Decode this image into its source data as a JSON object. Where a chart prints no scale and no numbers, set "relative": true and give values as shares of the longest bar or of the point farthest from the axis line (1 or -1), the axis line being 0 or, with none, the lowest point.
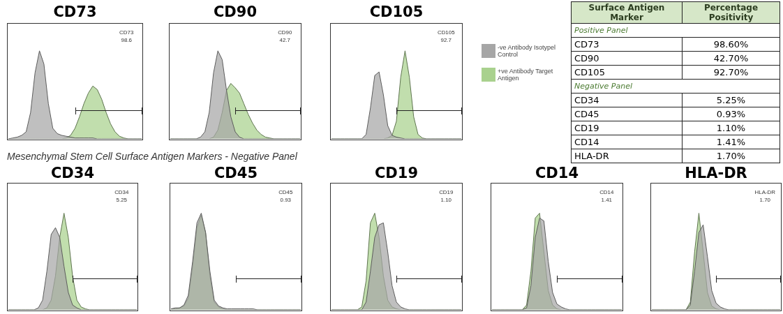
{
  "chart_data": [
    {
      "type": "area",
      "title": "CD73",
      "relative": true,
      "categories": [
        null,
        null,
        null,
        null,
        null,
        null,
        null,
        null,
        null,
        null,
        null,
        null,
        null,
        null,
        null,
        null,
        null,
        null,
        null,
        null,
        null,
        null,
        null,
        null,
        null,
        null,
        null,
        null,
        null,
        null,
        null
      ],
      "marker": "none",
      "annotations": [
        "CD73",
        "98.6"
      ],
      "series": [
        {
          "color": "#a6a6a6",
          "values": [
            0,
            0.01,
            0.02,
            0.04,
            0.08,
            0.3,
            0.75,
            1,
            0.85,
            0.4,
            0.12,
            0.06,
            0.04,
            0.03,
            0.02,
            0.01,
            0.01,
            0.01,
            0.01,
            0.01,
            0,
            0,
            0,
            0,
            0,
            0,
            0,
            0,
            0,
            0,
            0
          ]
        },
        {
          "color": "#a9d18e",
          "values": [
            0,
            0,
            0,
            0,
            0,
            0,
            0,
            0,
            0,
            0,
            0,
            0,
            0,
            0.01,
            0.04,
            0.12,
            0.25,
            0.4,
            0.52,
            0.6,
            0.56,
            0.45,
            0.3,
            0.17,
            0.08,
            0.03,
            0.01,
            0,
            0,
            0,
            0
          ]
        }
      ]
    },
    {
      "type": "area",
      "title": "CD90",
      "relative": true,
      "categories": [
        null,
        null,
        null,
        null,
        null,
        null,
        null,
        null,
        null,
        null,
        null,
        null,
        null,
        null,
        null,
        null,
        null,
        null,
        null,
        null,
        null,
        null,
        null,
        null,
        null,
        null,
        null,
        null,
        null,
        null,
        null
      ],
      "marker": "none",
      "annotations": [
        "CD90",
        "42.7"
      ],
      "series": [
        {
          "color": "#a6a6a6",
          "values": [
            0,
            0,
            0,
            0,
            0,
            0,
            0,
            0.02,
            0.08,
            0.3,
            0.75,
            1,
            0.9,
            0.55,
            0.25,
            0.08,
            0.02,
            0,
            0,
            0,
            0,
            0,
            0,
            0,
            0,
            0,
            0,
            0,
            0,
            0,
            0
          ]
        },
        {
          "color": "#a9d18e",
          "values": [
            0,
            0,
            0,
            0,
            0,
            0,
            0,
            0,
            0,
            0,
            0.02,
            0.1,
            0.3,
            0.55,
            0.63,
            0.58,
            0.52,
            0.4,
            0.28,
            0.18,
            0.1,
            0.05,
            0.02,
            0.01,
            0,
            0,
            0,
            0,
            0,
            0,
            0
          ]
        }
      ]
    },
    {
      "type": "area",
      "title": "CD105",
      "relative": true,
      "categories": [
        null,
        null,
        null,
        null,
        null,
        null,
        null,
        null,
        null,
        null,
        null,
        null,
        null,
        null,
        null,
        null,
        null,
        null,
        null,
        null,
        null,
        null,
        null,
        null,
        null,
        null,
        null,
        null,
        null,
        null,
        null
      ],
      "marker": "none",
      "legend": "right",
      "annotations": [
        "CD105",
        "92.7"
      ],
      "series": [
        {
          "name": "-ve Antibody Isotypel Control",
          "color": "#a6a6a6",
          "values": [
            0,
            0,
            0,
            0,
            0,
            0,
            0,
            0,
            0.05,
            0.35,
            0.72,
            0.76,
            0.5,
            0.15,
            0.04,
            0.02,
            0.01,
            0,
            0,
            0,
            0,
            0,
            0,
            0,
            0,
            0,
            0,
            0,
            0,
            0,
            0
          ]
        },
        {
          "name": "+ve Antibody Target Antigen",
          "color": "#a9d18e",
          "values": [
            0,
            0,
            0,
            0,
            0,
            0,
            0,
            0,
            0,
            0,
            0,
            0,
            0,
            0.01,
            0.04,
            0.2,
            0.7,
            1,
            0.7,
            0.25,
            0.05,
            0.01,
            0,
            0,
            0,
            0,
            0,
            0,
            0,
            0,
            0
          ]
        }
      ]
    },
    {
      "type": "area",
      "title": "CD34",
      "subtitle": "Mesenchymal Stem Cell Surface Antigen Markers - Negative Panel",
      "relative": true,
      "categories": [
        null,
        null,
        null,
        null,
        null,
        null,
        null,
        null,
        null,
        null,
        null,
        null,
        null,
        null,
        null,
        null,
        null,
        null,
        null,
        null,
        null,
        null,
        null,
        null,
        null,
        null,
        null,
        null,
        null,
        null,
        null
      ],
      "marker": "none",
      "annotations": [
        "CD34",
        "5.25"
      ],
      "series": [
        {
          "color": "#a6a6a6",
          "values": [
            0,
            0,
            0,
            0,
            0,
            0,
            0,
            0.02,
            0.1,
            0.4,
            0.78,
            0.85,
            0.75,
            0.45,
            0.18,
            0.05,
            0.02,
            0,
            0,
            0,
            0,
            0,
            0,
            0,
            0,
            0,
            0,
            0,
            0,
            0,
            0
          ]
        },
        {
          "color": "#a9d18e",
          "values": [
            0,
            0,
            0,
            0,
            0,
            0,
            0,
            0,
            0,
            0.02,
            0.1,
            0.35,
            0.75,
            1,
            0.75,
            0.35,
            0.1,
            0.03,
            0.01,
            0,
            0,
            0,
            0,
            0,
            0,
            0,
            0,
            0,
            0,
            0,
            0
          ]
        }
      ]
    },
    {
      "type": "area",
      "title": "CD45",
      "relative": true,
      "categories": [
        null,
        null,
        null,
        null,
        null,
        null,
        null,
        null,
        null,
        null,
        null,
        null,
        null,
        null,
        null,
        null,
        null,
        null,
        null,
        null,
        null,
        null,
        null,
        null,
        null,
        null,
        null,
        null,
        null,
        null,
        null
      ],
      "marker": "none",
      "annotations": [
        "CD45",
        "0.93"
      ],
      "series": [
        {
          "color": "#a6a6a6",
          "values": [
            0.01,
            0.02,
            0.02,
            0.05,
            0.15,
            0.5,
            0.9,
            1,
            0.8,
            0.4,
            0.1,
            0.04,
            0.02,
            0.01,
            0.01,
            0.01,
            0.01,
            0.01,
            0.01,
            0.01,
            0,
            0,
            0,
            0,
            0,
            0,
            0,
            0,
            0,
            0,
            0
          ]
        },
        {
          "color": "#a9d18e",
          "values": [
            0.01,
            0.01,
            0.02,
            0.04,
            0.12,
            0.45,
            0.85,
            0.98,
            0.8,
            0.35,
            0.08,
            0.03,
            0.01,
            0,
            0,
            0,
            0,
            0,
            0,
            0,
            0,
            0,
            0,
            0,
            0,
            0,
            0,
            0,
            0,
            0,
            0
          ]
        }
      ]
    },
    {
      "type": "area",
      "title": "CD19",
      "relative": true,
      "categories": [
        null,
        null,
        null,
        null,
        null,
        null,
        null,
        null,
        null,
        null,
        null,
        null,
        null,
        null,
        null,
        null,
        null,
        null,
        null,
        null,
        null,
        null,
        null,
        null,
        null,
        null,
        null,
        null,
        null,
        null,
        null
      ],
      "marker": "none",
      "annotations": [
        "CD19",
        "1.10"
      ],
      "series": [
        {
          "color": "#a6a6a6",
          "values": [
            0,
            0,
            0,
            0,
            0,
            0,
            0,
            0,
            0.08,
            0.4,
            0.75,
            0.88,
            0.9,
            0.6,
            0.25,
            0.08,
            0.03,
            0.01,
            0,
            0,
            0,
            0,
            0,
            0,
            0,
            0,
            0,
            0,
            0,
            0,
            0
          ]
        },
        {
          "color": "#a9d18e",
          "values": [
            0,
            0,
            0,
            0,
            0,
            0,
            0,
            0.03,
            0.3,
            0.9,
            1,
            0.75,
            0.35,
            0.1,
            0.03,
            0.01,
            0,
            0,
            0,
            0,
            0,
            0,
            0,
            0,
            0,
            0,
            0,
            0,
            0,
            0,
            0
          ]
        }
      ]
    },
    {
      "type": "area",
      "title": "CD14",
      "relative": true,
      "categories": [
        null,
        null,
        null,
        null,
        null,
        null,
        null,
        null,
        null,
        null,
        null,
        null,
        null,
        null,
        null,
        null,
        null,
        null,
        null,
        null,
        null,
        null,
        null,
        null,
        null,
        null,
        null,
        null,
        null,
        null,
        null
      ],
      "marker": "none",
      "annotations": [
        "CD14",
        "1.41"
      ],
      "series": [
        {
          "color": "#a6a6a6",
          "values": [
            0,
            0,
            0,
            0,
            0,
            0,
            0,
            0,
            0.02,
            0.25,
            0.75,
            0.95,
            0.92,
            0.5,
            0.18,
            0.06,
            0.03,
            0.01,
            0,
            0,
            0,
            0,
            0,
            0,
            0,
            0,
            0,
            0,
            0,
            0,
            0
          ]
        },
        {
          "color": "#a9d18e",
          "values": [
            0,
            0,
            0,
            0,
            0,
            0,
            0,
            0,
            0.05,
            0.4,
            0.95,
            1,
            0.6,
            0.2,
            0.05,
            0.01,
            0,
            0,
            0,
            0,
            0,
            0,
            0,
            0,
            0,
            0,
            0,
            0,
            0,
            0,
            0
          ]
        }
      ]
    },
    {
      "type": "area",
      "title": "HLA-DR",
      "relative": true,
      "categories": [
        null,
        null,
        null,
        null,
        null,
        null,
        null,
        null,
        null,
        null,
        null,
        null,
        null,
        null,
        null,
        null,
        null,
        null,
        null,
        null,
        null,
        null,
        null,
        null,
        null,
        null,
        null,
        null,
        null,
        null,
        null
      ],
      "marker": "none",
      "annotations": [
        "HLA-DR",
        "1.70"
      ],
      "series": [
        {
          "color": "#a6a6a6",
          "values": [
            0,
            0,
            0,
            0,
            0,
            0,
            0,
            0,
            0,
            0.05,
            0.4,
            0.8,
            0.88,
            0.55,
            0.2,
            0.07,
            0.03,
            0.01,
            0,
            0,
            0,
            0,
            0,
            0,
            0,
            0,
            0,
            0,
            0,
            0,
            0
          ]
        },
        {
          "color": "#a9d18e",
          "values": [
            0,
            0,
            0,
            0,
            0,
            0,
            0,
            0,
            0,
            0.08,
            0.6,
            1,
            0.6,
            0.18,
            0.04,
            0.01,
            0,
            0,
            0,
            0,
            0,
            0,
            0,
            0,
            0,
            0,
            0,
            0,
            0,
            0,
            0
          ]
        }
      ]
    },
    {
      "type": "other",
      "xlabel": "Surface Antigen Marker",
      "ylabel": "Percentage Positivity",
      "categories": [
        "CD73",
        "CD90",
        "CD105",
        "CD34",
        "CD45",
        "CD19",
        "CD14",
        "HLA-DR"
      ],
      "value_labels": [
        "98.60%",
        "42.70%",
        "92.70%",
        "5.25%",
        "0.93%",
        "1.10%",
        "1.41%",
        "1.70%"
      ],
      "annotations": [
        {
          "text": "Positive Panel",
          "x": "CD73"
        },
        {
          "text": "Negative Panel",
          "x": "CD34"
        }
      ]
    }
  ]
}
